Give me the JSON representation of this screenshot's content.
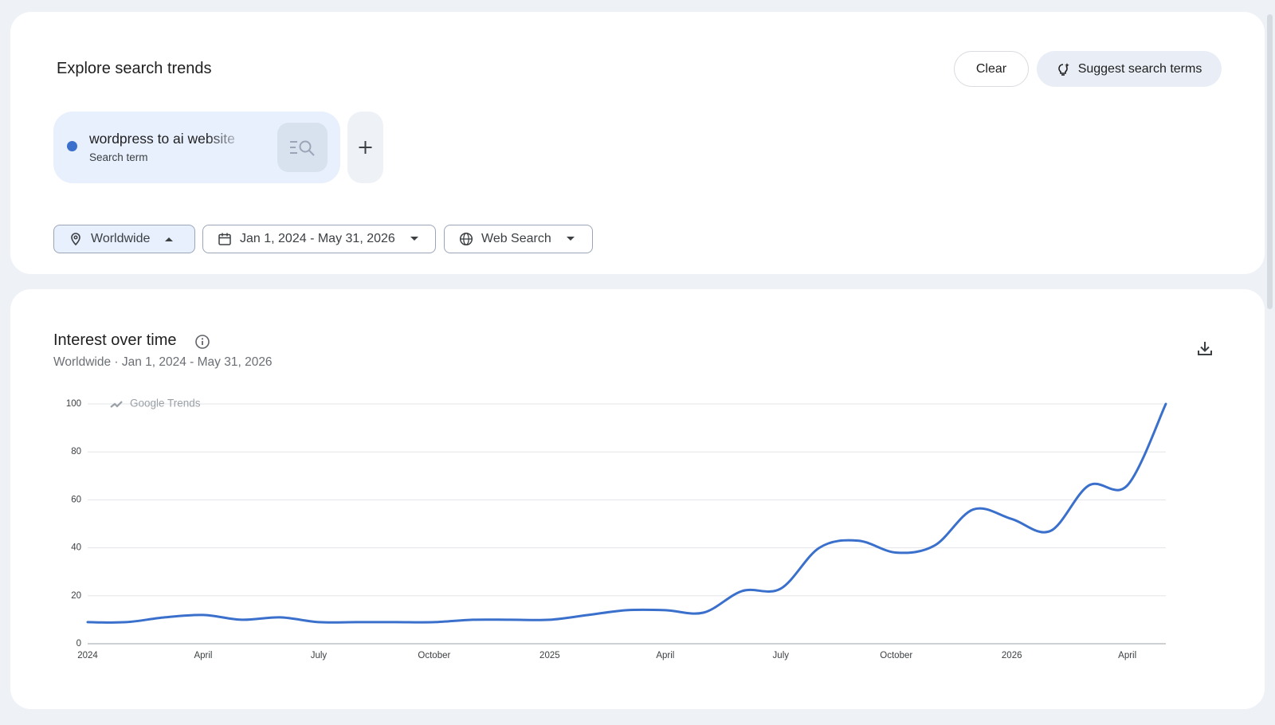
{
  "header": {
    "title": "Explore search trends",
    "clear": "Clear",
    "suggest": "Suggest search terms"
  },
  "term": {
    "label": "wordpress to ai website",
    "sublabel": "Search term"
  },
  "filters": {
    "region": "Worldwide",
    "date": "Jan 1, 2024 - May 31, 2026",
    "property": "Web Search"
  },
  "chart_data": {
    "type": "line",
    "title": "Interest over time",
    "subtitle": "Worldwide · Jan 1, 2024 - May 31, 2026",
    "watermark": "Google Trends",
    "categories": [
      "2024",
      null,
      null,
      "April",
      null,
      null,
      "July",
      null,
      null,
      "October",
      null,
      null,
      "2025",
      null,
      null,
      "April",
      null,
      null,
      "July",
      null,
      null,
      "October",
      null,
      null,
      "2026",
      null,
      null,
      "April",
      null
    ],
    "series": [
      {
        "name": "wordpress to ai website",
        "color": "#3a70cc",
        "values": [
          9,
          9,
          11,
          12,
          10,
          11,
          9,
          9,
          9,
          9,
          10,
          10,
          10,
          12,
          14,
          14,
          13,
          22,
          23,
          40,
          43,
          38,
          41,
          56,
          52,
          47,
          66,
          66,
          100
        ]
      }
    ],
    "ylim": [
      0,
      100
    ],
    "yticks": [
      0,
      20,
      40,
      60,
      80,
      100
    ],
    "grid": true
  }
}
